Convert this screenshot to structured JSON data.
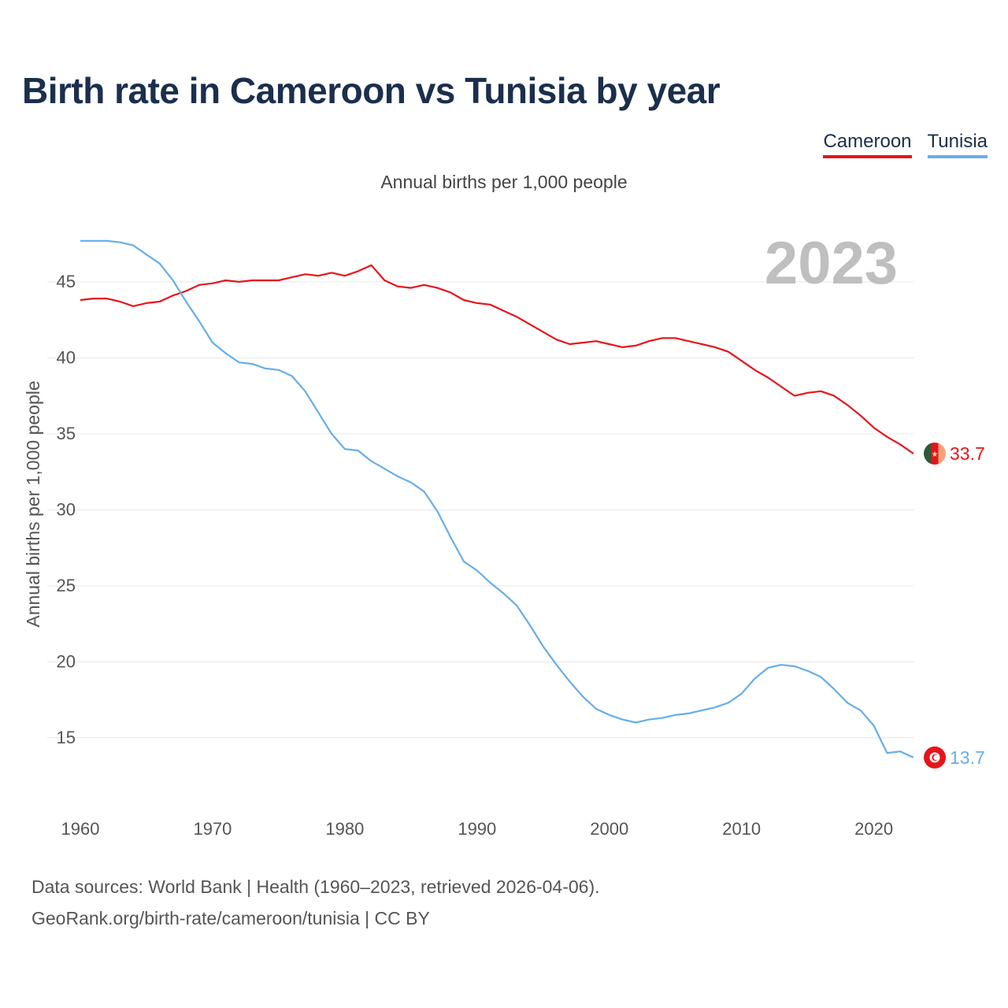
{
  "title": "Birth rate in Cameroon vs Tunisia by year",
  "subtitle": "Annual births per 1,000 people",
  "year_label": "2023",
  "legend": [
    {
      "name": "Cameroon",
      "color": "#e8141b"
    },
    {
      "name": "Tunisia",
      "color": "#66aee8"
    }
  ],
  "chart_data": {
    "type": "line",
    "title": "Birth rate in Cameroon vs Tunisia by year",
    "xlabel": "",
    "ylabel": "Annual births per 1,000 people",
    "xlim": [
      1960,
      2023
    ],
    "ylim": [
      11,
      48
    ],
    "x_ticks": [
      1960,
      1970,
      1980,
      1990,
      2000,
      2010,
      2020
    ],
    "y_ticks": [
      15,
      20,
      25,
      30,
      35,
      40,
      45
    ],
    "grid": true,
    "x": [
      1960,
      1961,
      1962,
      1963,
      1964,
      1965,
      1966,
      1967,
      1968,
      1969,
      1970,
      1971,
      1972,
      1973,
      1974,
      1975,
      1976,
      1977,
      1978,
      1979,
      1980,
      1981,
      1982,
      1983,
      1984,
      1985,
      1986,
      1987,
      1988,
      1989,
      1990,
      1991,
      1992,
      1993,
      1994,
      1995,
      1996,
      1997,
      1998,
      1999,
      2000,
      2001,
      2002,
      2003,
      2004,
      2005,
      2006,
      2007,
      2008,
      2009,
      2010,
      2011,
      2012,
      2013,
      2014,
      2015,
      2016,
      2017,
      2018,
      2019,
      2020,
      2021,
      2022,
      2023
    ],
    "series": [
      {
        "name": "Cameroon",
        "color": "#e8141b",
        "end_label": "33.7",
        "values": [
          43.8,
          43.9,
          43.9,
          43.7,
          43.4,
          43.6,
          43.7,
          44.1,
          44.4,
          44.8,
          44.9,
          45.1,
          45.0,
          45.1,
          45.1,
          45.1,
          45.3,
          45.5,
          45.4,
          45.6,
          45.4,
          45.7,
          46.1,
          45.1,
          44.7,
          44.6,
          44.8,
          44.6,
          44.3,
          43.8,
          43.6,
          43.5,
          43.1,
          42.7,
          42.2,
          41.7,
          41.2,
          40.9,
          41.0,
          41.1,
          40.9,
          40.7,
          40.8,
          41.1,
          41.3,
          41.3,
          41.1,
          40.9,
          40.7,
          40.4,
          39.8,
          39.2,
          38.7,
          38.1,
          37.5,
          37.7,
          37.8,
          37.5,
          36.9,
          36.2,
          35.4,
          34.8,
          34.3,
          33.7
        ]
      },
      {
        "name": "Tunisia",
        "color": "#66aee8",
        "end_label": "13.7",
        "values": [
          47.7,
          47.7,
          47.7,
          47.6,
          47.4,
          46.8,
          46.2,
          45.1,
          43.7,
          42.4,
          41.0,
          40.3,
          39.7,
          39.6,
          39.3,
          39.2,
          38.8,
          37.8,
          36.4,
          35.0,
          34.0,
          33.9,
          33.2,
          32.7,
          32.2,
          31.8,
          31.2,
          29.9,
          28.2,
          26.6,
          26.0,
          25.2,
          24.5,
          23.7,
          22.4,
          21.0,
          19.8,
          18.7,
          17.7,
          16.9,
          16.5,
          16.2,
          16.0,
          16.2,
          16.3,
          16.5,
          16.6,
          16.8,
          17.0,
          17.3,
          17.9,
          18.9,
          19.6,
          19.8,
          19.7,
          19.4,
          19.0,
          18.2,
          17.3,
          16.8,
          15.8,
          14.0,
          14.1,
          13.7
        ]
      }
    ]
  },
  "footer": {
    "line1": "Data sources: World Bank | Health (1960–2023, retrieved 2026-04-06).",
    "line2": "GeoRank.org/birth-rate/cameroon/tunisia | CC BY"
  }
}
